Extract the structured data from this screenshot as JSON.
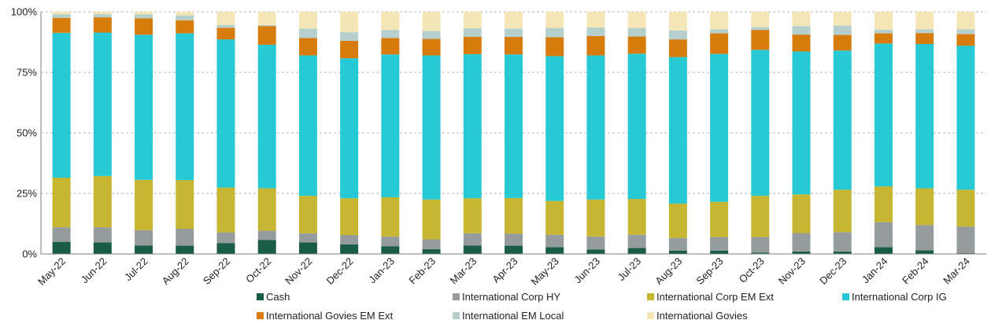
{
  "chart_data": {
    "type": "bar",
    "stacked": true,
    "percent": true,
    "grid": true,
    "legend_position": "bottom",
    "ylim": [
      0,
      100
    ],
    "y_ticks": [
      "0%",
      "25%",
      "50%",
      "75%",
      "100%"
    ],
    "categories": [
      "May-22",
      "Jun-22",
      "Jul-22",
      "Aug-22",
      "Sep-22",
      "Oct-22",
      "Nov-22",
      "Dec-22",
      "Jan-23",
      "Feb-23",
      "Mar-23",
      "Apr-23",
      "May-23",
      "Jun-23",
      "Jul-23",
      "Aug-23",
      "Sep-23",
      "Oct-23",
      "Nov-23",
      "Dec-23",
      "Jan-24",
      "Feb-24",
      "Mar-24"
    ],
    "series": [
      {
        "name": "Cash",
        "color": "#1a5c45",
        "values": [
          5.0,
          4.8,
          3.5,
          3.4,
          4.5,
          5.8,
          4.8,
          4.0,
          3.2,
          2.0,
          3.5,
          3.4,
          2.8,
          1.8,
          2.5,
          1.4,
          1.4,
          0.5,
          1.0,
          1.0,
          2.8,
          1.5,
          0.3
        ]
      },
      {
        "name": "International Corp HY",
        "color": "#959c9e",
        "values": [
          6.0,
          6.2,
          6.3,
          7.0,
          4.4,
          3.8,
          3.7,
          3.8,
          4.0,
          4.0,
          5.0,
          5.0,
          5.1,
          5.4,
          5.4,
          5.2,
          5.6,
          6.5,
          7.6,
          8.0,
          10.3,
          10.4,
          11.0
        ]
      },
      {
        "name": "International Corp EM Ext",
        "color": "#c6b631",
        "values": [
          20.5,
          21.2,
          20.8,
          20.1,
          18.5,
          17.5,
          15.5,
          15.2,
          16.2,
          16.5,
          14.5,
          14.7,
          14.0,
          15.3,
          14.8,
          14.2,
          14.5,
          17.0,
          16.0,
          17.5,
          14.8,
          15.2,
          15.2
        ]
      },
      {
        "name": "International Corp IG",
        "color": "#26c9d4",
        "values": [
          59.8,
          59.2,
          59.9,
          60.6,
          61.2,
          59.3,
          58.0,
          57.8,
          59.0,
          59.5,
          59.5,
          59.3,
          59.8,
          59.5,
          60.0,
          60.5,
          61.1,
          60.3,
          59.0,
          57.5,
          59.0,
          59.6,
          59.5
        ]
      },
      {
        "name": "International Govies EM Ext",
        "color": "#d67b0c",
        "values": [
          6.2,
          6.3,
          6.8,
          5.4,
          4.8,
          7.7,
          7.2,
          7.2,
          6.8,
          6.8,
          7.2,
          7.2,
          7.8,
          8.0,
          7.1,
          7.3,
          8.5,
          8.2,
          7.0,
          6.5,
          4.2,
          4.5,
          4.8
        ]
      },
      {
        "name": "International EM Local",
        "color": "#b5cfcc",
        "values": [
          1.5,
          1.3,
          1.6,
          2.0,
          1.2,
          0.4,
          3.8,
          3.6,
          3.3,
          3.3,
          3.5,
          3.5,
          3.8,
          3.5,
          3.5,
          3.7,
          1.6,
          1.2,
          3.5,
          3.8,
          1.5,
          1.6,
          2.0
        ]
      },
      {
        "name": "International Govies",
        "color": "#f5e6b7",
        "values": [
          1.0,
          1.0,
          1.1,
          1.5,
          5.4,
          5.5,
          7.0,
          8.4,
          7.5,
          7.9,
          6.8,
          6.9,
          6.7,
          6.5,
          6.7,
          7.7,
          7.3,
          6.3,
          5.9,
          5.7,
          7.4,
          7.2,
          7.2
        ]
      }
    ]
  }
}
